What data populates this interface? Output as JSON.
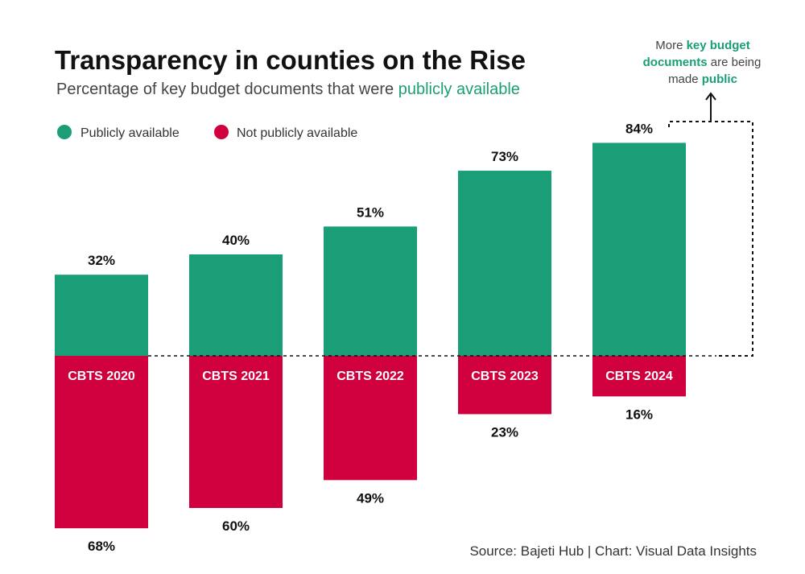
{
  "chart_data": {
    "type": "bar",
    "stacked_diverging": true,
    "title": "Transparency in counties on the Rise",
    "subtitle_prefix": "Percentage of key budget documents that were ",
    "subtitle_highlight": "publicly available",
    "categories": [
      "CBTS 2020",
      "CBTS 2021",
      "CBTS 2022",
      "CBTS 2023",
      "CBTS 2024"
    ],
    "series": [
      {
        "name": "Publicly available",
        "values": [
          32,
          40,
          51,
          73,
          84
        ],
        "color": "#1a9e77",
        "direction": "up"
      },
      {
        "name": "Not publicly available",
        "values": [
          68,
          60,
          49,
          23,
          16
        ],
        "color": "#d0003f",
        "direction": "down"
      }
    ],
    "value_suffix": "%",
    "legend_placement": "top-left",
    "grid": false,
    "annotation": {
      "parts": [
        {
          "text": "More ",
          "highlight": false
        },
        {
          "text": "key budget",
          "highlight": true
        },
        {
          "text": "documents",
          "highlight": true
        },
        {
          "text": " are being",
          "highlight": false
        },
        {
          "text": "made ",
          "highlight": false
        },
        {
          "text": "public",
          "highlight": true
        }
      ]
    },
    "source": "Source: Bajeti Hub | Chart: Visual Data Insights",
    "colors": {
      "accent": "#1a9e77",
      "negative": "#d0003f",
      "text": "#111111",
      "muted": "#444444"
    }
  }
}
